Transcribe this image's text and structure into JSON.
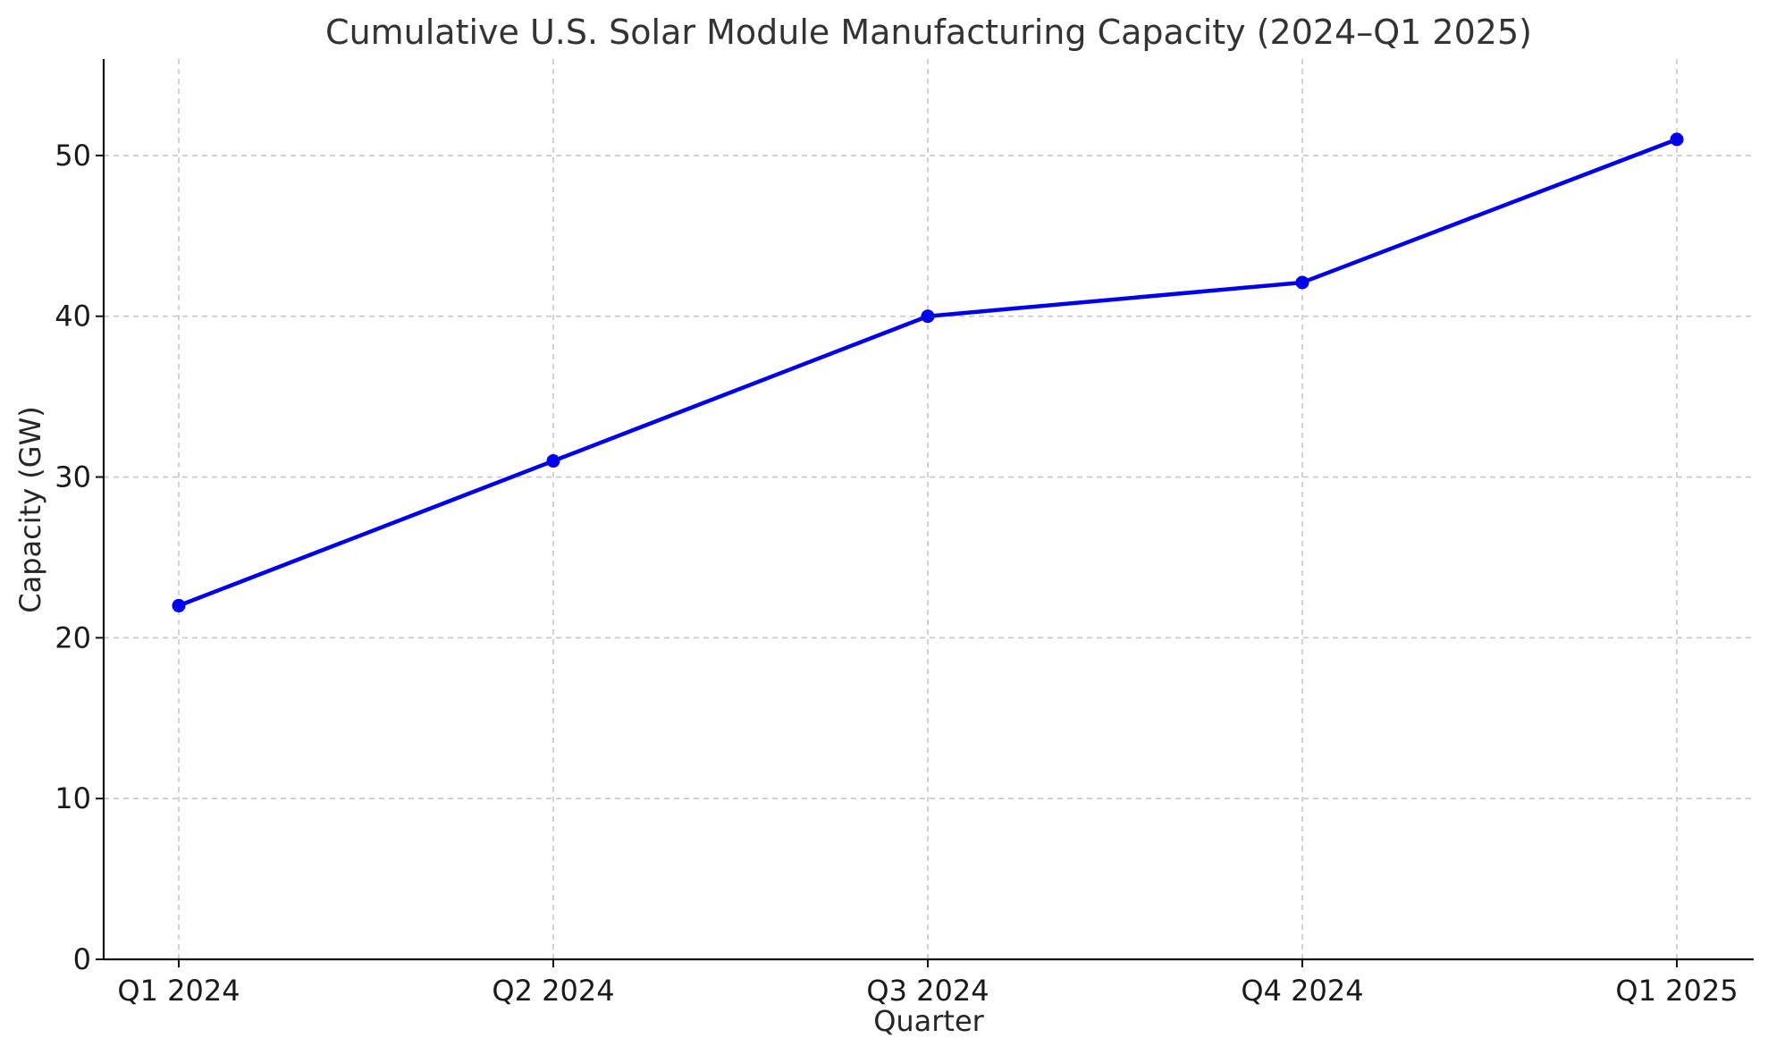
{
  "chart_data": {
    "type": "line",
    "title": "Cumulative U.S. Solar Module Manufacturing Capacity (2024–Q1 2025)",
    "xlabel": "Quarter",
    "ylabel": "Capacity (GW)",
    "categories": [
      "Q1 2024",
      "Q2 2024",
      "Q3 2024",
      "Q4 2024",
      "Q1 2025"
    ],
    "series": [
      {
        "values": [
          22,
          31,
          40,
          42.1,
          51
        ],
        "color": "#0000ee",
        "marker": "circle"
      }
    ],
    "ylim": [
      0,
      56
    ],
    "yticks": [
      0,
      10,
      20,
      30,
      40,
      50
    ],
    "ytick_labels": [
      "0",
      "10",
      "20",
      "30",
      "40",
      "50"
    ],
    "grid": true,
    "legend": "none"
  }
}
